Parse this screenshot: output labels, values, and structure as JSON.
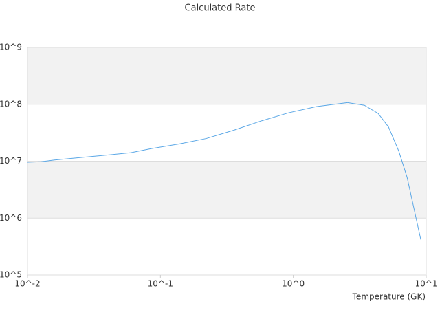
{
  "chart_data": {
    "type": "line",
    "title": "Calculated Rate",
    "x_label": "Temperature (GK)",
    "x_scale": "log",
    "y_scale": "log",
    "grid_bands": true,
    "xlim": [
      0.01,
      10
    ],
    "ylim": [
      100000,
      1000000000
    ],
    "xticks": [
      {
        "value": 0.01,
        "label": "10^-2"
      },
      {
        "value": 0.1,
        "label": "10^-1"
      },
      {
        "value": 1,
        "label": "10^0"
      },
      {
        "value": 10,
        "label": "10^1"
      }
    ],
    "yticks": [
      {
        "value": 100000,
        "label": "10^5"
      },
      {
        "value": 1000000,
        "label": "10^6"
      },
      {
        "value": 10000000,
        "label": "10^7"
      },
      {
        "value": 100000000,
        "label": "10^8"
      },
      {
        "value": 1000000000,
        "label": "10^9"
      }
    ],
    "series": [
      {
        "color": "#5aa7e6",
        "x": [
          0.01,
          0.0127,
          0.016,
          0.026,
          0.042,
          0.06,
          0.085,
          0.137,
          0.221,
          0.356,
          0.574,
          0.925,
          1.49,
          2.55,
          3.43,
          4.35,
          5.2,
          6.22,
          7.18,
          9.1
        ],
        "values": [
          9600000,
          9800000,
          10500000,
          11700000,
          13000000,
          14100000,
          16600000,
          20000000,
          25000000,
          35000000,
          51000000,
          71000000,
          91000000,
          107000000,
          96000000,
          69000000,
          40000000,
          15000000,
          5200000,
          420000
        ]
      }
    ]
  }
}
